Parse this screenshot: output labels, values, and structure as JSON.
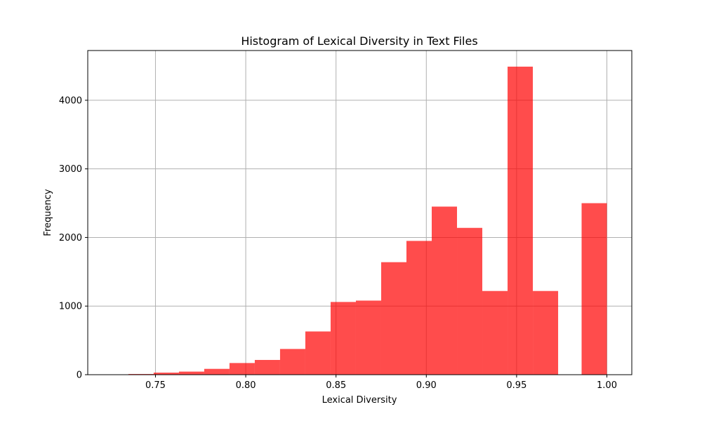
{
  "chart_data": {
    "type": "bar",
    "title": "Histogram of Lexical Diversity in Text Files",
    "xlabel": "Lexical Diversity",
    "ylabel": "Frequency",
    "xlim": [
      0.7125,
      1.0138
    ],
    "ylim": [
      0,
      4725
    ],
    "x_ticks": [
      "0.75",
      "0.80",
      "0.85",
      "0.90",
      "0.95",
      "1.00"
    ],
    "y_ticks": [
      "0",
      "1000",
      "2000",
      "3000",
      "4000"
    ],
    "grid": true,
    "bar_color": "#ff0000",
    "bar_opacity": 0.7,
    "bins": [
      {
        "x0": 0.735,
        "x1": 0.749,
        "value": 10
      },
      {
        "x0": 0.749,
        "x1": 0.763,
        "value": 30
      },
      {
        "x0": 0.763,
        "x1": 0.777,
        "value": 45
      },
      {
        "x0": 0.777,
        "x1": 0.791,
        "value": 85
      },
      {
        "x0": 0.791,
        "x1": 0.805,
        "value": 170
      },
      {
        "x0": 0.805,
        "x1": 0.819,
        "value": 215
      },
      {
        "x0": 0.819,
        "x1": 0.833,
        "value": 375
      },
      {
        "x0": 0.833,
        "x1": 0.847,
        "value": 630
      },
      {
        "x0": 0.847,
        "x1": 0.861,
        "value": 1060
      },
      {
        "x0": 0.861,
        "x1": 0.875,
        "value": 1080
      },
      {
        "x0": 0.875,
        "x1": 0.889,
        "value": 1640
      },
      {
        "x0": 0.889,
        "x1": 0.903,
        "value": 1950
      },
      {
        "x0": 0.903,
        "x1": 0.917,
        "value": 2450
      },
      {
        "x0": 0.917,
        "x1": 0.931,
        "value": 2140
      },
      {
        "x0": 0.931,
        "x1": 0.945,
        "value": 1220
      },
      {
        "x0": 0.945,
        "x1": 0.959,
        "value": 4490
      },
      {
        "x0": 0.959,
        "x1": 0.973,
        "value": 1220
      },
      {
        "x0": 0.973,
        "x1": 0.986,
        "value": 0
      },
      {
        "x0": 0.986,
        "x1": 1.0,
        "value": 2500
      }
    ]
  }
}
